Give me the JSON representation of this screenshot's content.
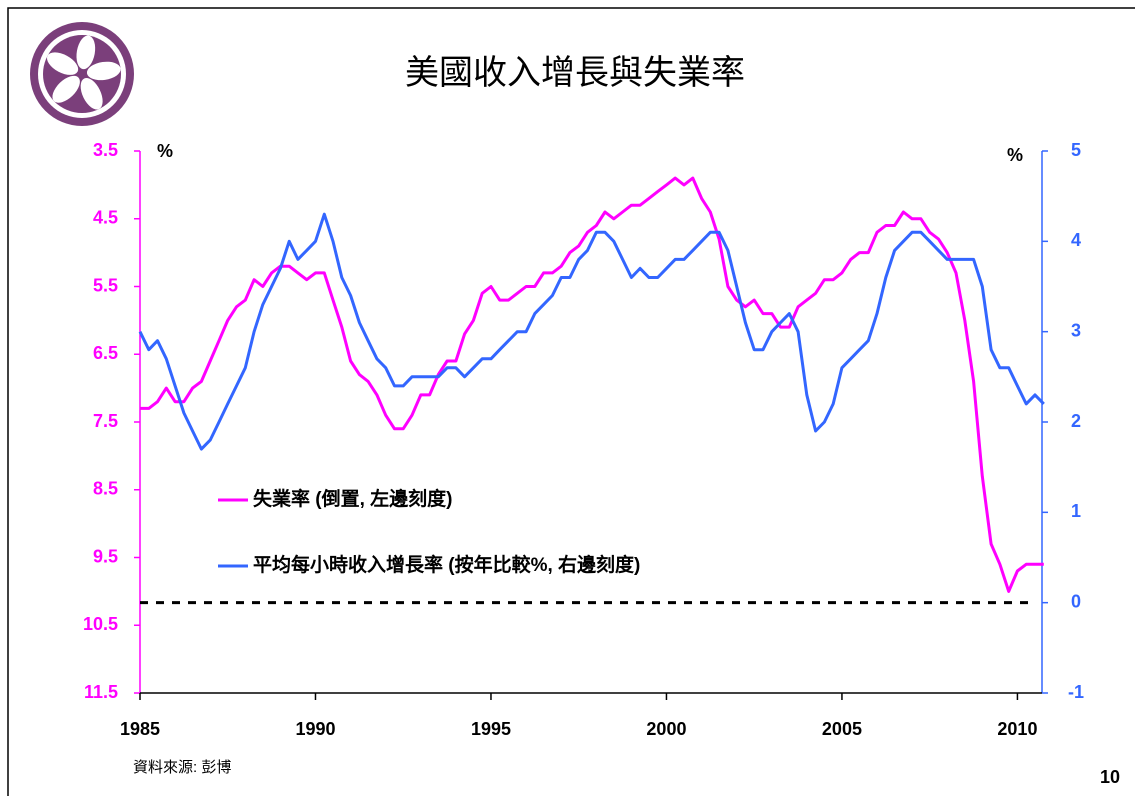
{
  "chart_data": {
    "type": "line",
    "title": "美國收入增長與失業率",
    "y_unit": "%",
    "y2_unit": "%",
    "source": "資料來源: 彭博",
    "page_number": "10",
    "x": [
      1985,
      1985.25,
      1985.5,
      1985.75,
      1986,
      1986.25,
      1986.5,
      1986.75,
      1987,
      1987.25,
      1987.5,
      1987.75,
      1988,
      1988.25,
      1988.5,
      1988.75,
      1989,
      1989.25,
      1989.5,
      1989.75,
      1990,
      1990.25,
      1990.5,
      1990.75,
      1991,
      1991.25,
      1991.5,
      1991.75,
      1992,
      1992.25,
      1992.5,
      1992.75,
      1993,
      1993.25,
      1993.5,
      1993.75,
      1994,
      1994.25,
      1994.5,
      1994.75,
      1995,
      1995.25,
      1995.5,
      1995.75,
      1996,
      1996.25,
      1996.5,
      1996.75,
      1997,
      1997.25,
      1997.5,
      1997.75,
      1998,
      1998.25,
      1998.5,
      1998.75,
      1999,
      1999.25,
      1999.5,
      1999.75,
      2000,
      2000.25,
      2000.5,
      2000.75,
      2001,
      2001.25,
      2001.5,
      2001.75,
      2002,
      2002.25,
      2002.5,
      2002.75,
      2003,
      2003.25,
      2003.5,
      2003.75,
      2004,
      2004.25,
      2004.5,
      2004.75,
      2005,
      2005.25,
      2005.5,
      2005.75,
      2006,
      2006.25,
      2006.5,
      2006.75,
      2007,
      2007.25,
      2007.5,
      2007.75,
      2008,
      2008.25,
      2008.5,
      2008.75,
      2009,
      2009.25,
      2009.5,
      2009.75,
      2010,
      2010.25,
      2010.5,
      2010.75
    ],
    "series": [
      {
        "name": "失業率 (倒置, 左邊刻度)",
        "color": "#ff00ff",
        "axis": "y",
        "values": [
          7.3,
          7.3,
          7.2,
          7.0,
          7.2,
          7.2,
          7.0,
          6.9,
          6.6,
          6.3,
          6.0,
          5.8,
          5.7,
          5.4,
          5.5,
          5.3,
          5.2,
          5.2,
          5.3,
          5.4,
          5.3,
          5.3,
          5.7,
          6.1,
          6.6,
          6.8,
          6.9,
          7.1,
          7.4,
          7.6,
          7.6,
          7.4,
          7.1,
          7.1,
          6.8,
          6.6,
          6.6,
          6.2,
          6.0,
          5.6,
          5.5,
          5.7,
          5.7,
          5.6,
          5.5,
          5.5,
          5.3,
          5.3,
          5.2,
          5.0,
          4.9,
          4.7,
          4.6,
          4.4,
          4.5,
          4.4,
          4.3,
          4.3,
          4.2,
          4.1,
          4.0,
          3.9,
          4.0,
          3.9,
          4.2,
          4.4,
          4.8,
          5.5,
          5.7,
          5.8,
          5.7,
          5.9,
          5.9,
          6.1,
          6.1,
          5.8,
          5.7,
          5.6,
          5.4,
          5.4,
          5.3,
          5.1,
          5.0,
          5.0,
          4.7,
          4.6,
          4.6,
          4.4,
          4.5,
          4.5,
          4.7,
          4.8,
          5.0,
          5.3,
          6.0,
          6.9,
          8.3,
          9.3,
          9.6,
          10.0,
          9.7,
          9.6,
          9.6,
          9.6
        ]
      },
      {
        "name": "平均每小時收入增長率 (按年比較%, 右邊刻度)",
        "color": "#3366ff",
        "axis": "y2",
        "values": [
          3.0,
          2.8,
          2.9,
          2.7,
          2.4,
          2.1,
          1.9,
          1.7,
          1.8,
          2.0,
          2.2,
          2.4,
          2.6,
          3.0,
          3.3,
          3.5,
          3.7,
          4.0,
          3.8,
          3.9,
          4.0,
          4.3,
          4.0,
          3.6,
          3.4,
          3.1,
          2.9,
          2.7,
          2.6,
          2.4,
          2.4,
          2.5,
          2.5,
          2.5,
          2.5,
          2.6,
          2.6,
          2.5,
          2.6,
          2.7,
          2.7,
          2.8,
          2.9,
          3.0,
          3.0,
          3.2,
          3.3,
          3.4,
          3.6,
          3.6,
          3.8,
          3.9,
          4.1,
          4.1,
          4.0,
          3.8,
          3.6,
          3.7,
          3.6,
          3.6,
          3.7,
          3.8,
          3.8,
          3.9,
          4.0,
          4.1,
          4.1,
          3.9,
          3.5,
          3.1,
          2.8,
          2.8,
          3.0,
          3.1,
          3.2,
          3.0,
          2.3,
          1.9,
          2.0,
          2.2,
          2.6,
          2.7,
          2.8,
          2.9,
          3.2,
          3.6,
          3.9,
          4.0,
          4.1,
          4.1,
          4.0,
          3.9,
          3.8,
          3.8,
          3.8,
          3.8,
          3.5,
          2.8,
          2.6,
          2.6,
          2.4,
          2.2,
          2.3,
          2.2
        ]
      }
    ],
    "xlim": [
      1985,
      2010.7
    ],
    "xticks": [
      1985,
      1990,
      1995,
      2000,
      2005,
      2010
    ],
    "ylim": [
      3.5,
      11.5
    ],
    "y_inverted": true,
    "yticks": [
      3.5,
      4.5,
      5.5,
      6.5,
      7.5,
      8.5,
      9.5,
      10.5,
      11.5
    ],
    "y2lim": [
      -1,
      5
    ],
    "y2ticks": [
      -1,
      0,
      1,
      2,
      3,
      4,
      5
    ],
    "zero_line": true
  }
}
